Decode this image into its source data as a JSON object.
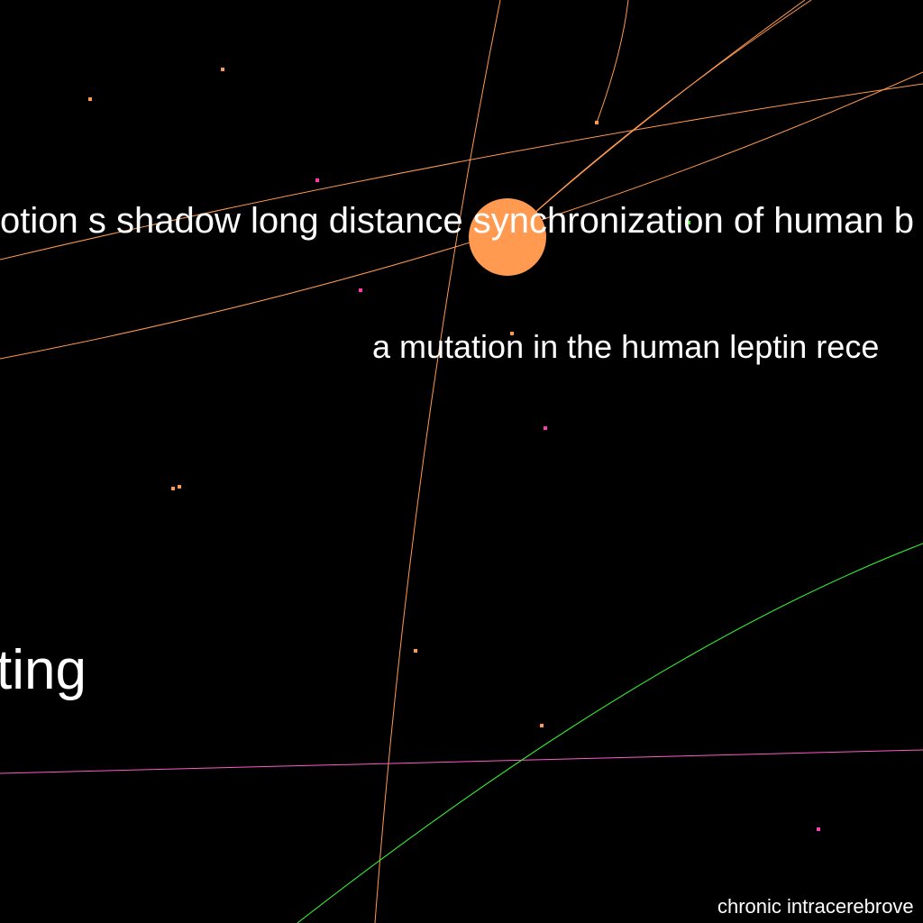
{
  "graph": {
    "colors": {
      "background": "#000000",
      "orange": "#ff9a50",
      "pink": "#ff3db0",
      "green": "#33ff33",
      "magenta": "#ff5ac8",
      "label": "#ffffff"
    },
    "labels": {
      "shadow": "otion s shadow long distance synchronization of human b",
      "leptin": "a mutation in the human leptin rece",
      "ting": "ting",
      "chronic": "chronic intracerebrove"
    }
  }
}
